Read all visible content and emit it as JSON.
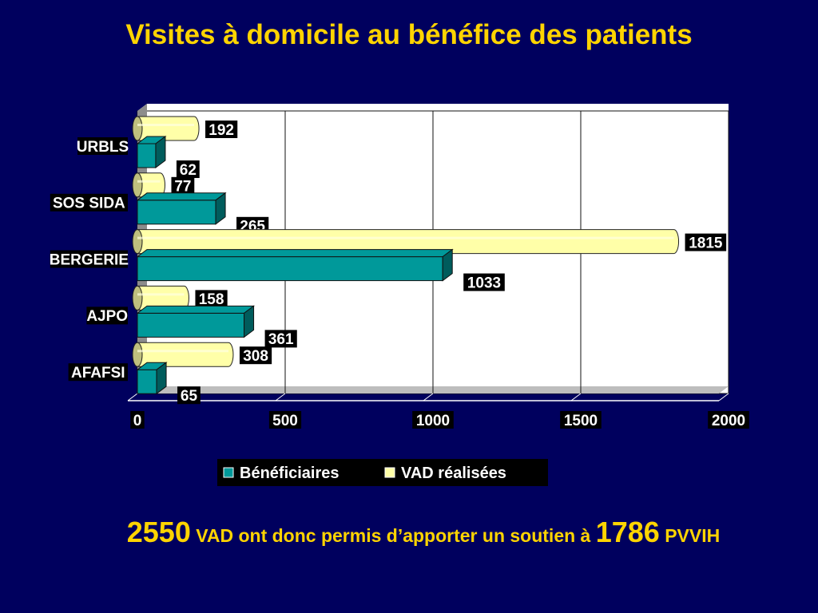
{
  "title": "Visites à domicile au bénéfice des patients",
  "chart_data": {
    "type": "bar",
    "orientation": "horizontal",
    "title": "",
    "xlabel": "",
    "ylabel": "",
    "categories": [
      "URBLS",
      "SOS SIDA",
      "BERGERIE",
      "AJPO",
      "AFAFSI"
    ],
    "series": [
      {
        "name": "Bénéficiaires",
        "values": [
          62,
          265,
          1033,
          361,
          65
        ],
        "color": "#00999a"
      },
      {
        "name": "VAD réalisées",
        "values": [
          192,
          77,
          1815,
          158,
          308
        ],
        "color": "#ffffa8"
      }
    ],
    "xlim": [
      0,
      2000
    ],
    "xticks": [
      "0",
      "500",
      "1000",
      "1500",
      "2000"
    ],
    "grid": true,
    "legend": "bottom"
  },
  "summary": {
    "vad_count": "2550",
    "text_middle": "VAD ont donc permis d’apporter un soutien à",
    "patients_count": "1786",
    "text_end": "PVVIH"
  }
}
